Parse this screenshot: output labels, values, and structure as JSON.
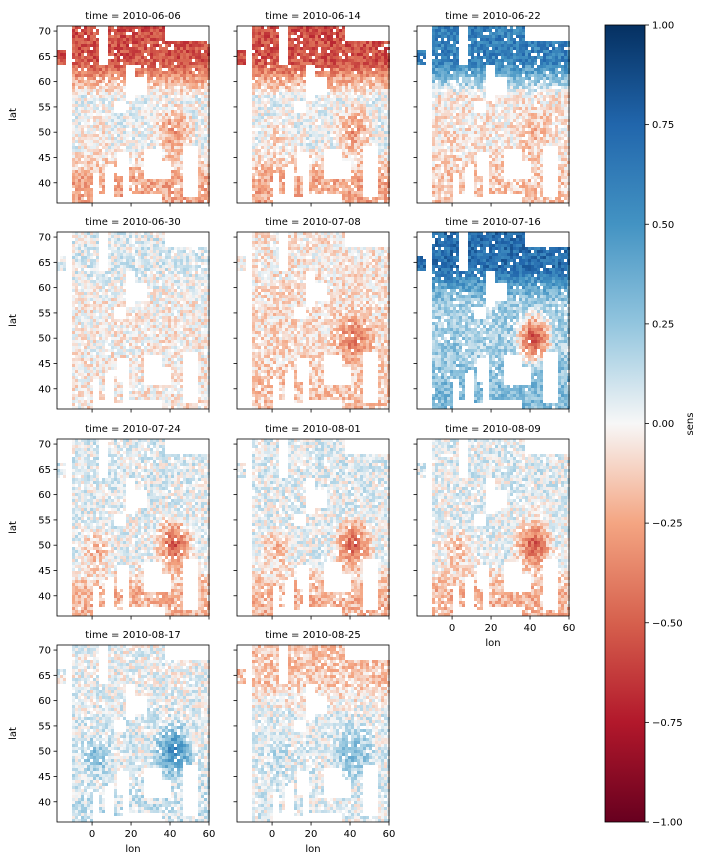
{
  "chart_data": {
    "type": "heatmap",
    "variable_label": "sens",
    "x_label": "lon",
    "y_label": "lat",
    "x_range": [
      -18,
      60
    ],
    "y_range": [
      36,
      71
    ],
    "x_ticks": [
      0,
      20,
      40,
      60
    ],
    "y_ticks": [
      40,
      45,
      50,
      55,
      60,
      65,
      70
    ],
    "colormap": "RdBu",
    "color_range": [
      -1.0,
      1.0
    ],
    "colorbar_ticks": [
      "1.00",
      "0.75",
      "0.50",
      "0.25",
      "0.00",
      "−0.25",
      "−0.50",
      "−0.75",
      "−1.00"
    ],
    "panels": [
      {
        "title": "time = 2010-06-06",
        "north": -0.55,
        "south": -0.25,
        "central": 0.02,
        "east_hotspot": -0.35,
        "west_coast": -0.15
      },
      {
        "title": "time = 2010-06-14",
        "north": -0.55,
        "south": -0.25,
        "central": 0.02,
        "east_hotspot": -0.35,
        "west_coast": -0.15
      },
      {
        "title": "time = 2010-06-22",
        "north": 0.6,
        "south": -0.15,
        "central": -0.05,
        "east_hotspot": -0.2,
        "west_coast": -0.1
      },
      {
        "title": "time = 2010-06-30",
        "north": 0.05,
        "south": -0.05,
        "central": -0.03,
        "east_hotspot": -0.05,
        "west_coast": -0.02
      },
      {
        "title": "time = 2010-07-08",
        "north": -0.05,
        "south": -0.15,
        "central": -0.08,
        "east_hotspot": -0.45,
        "west_coast": -0.1
      },
      {
        "title": "time = 2010-07-16",
        "north": 0.7,
        "south": 0.3,
        "central": 0.2,
        "east_hotspot": -0.65,
        "west_coast": 0.25
      },
      {
        "title": "time = 2010-07-24",
        "north": 0.05,
        "south": -0.2,
        "central": 0.03,
        "east_hotspot": -0.55,
        "west_coast": -0.3
      },
      {
        "title": "time = 2010-08-01",
        "north": 0.05,
        "south": -0.2,
        "central": 0.03,
        "east_hotspot": -0.55,
        "west_coast": -0.3
      },
      {
        "title": "time = 2010-08-09",
        "north": 0.05,
        "south": -0.2,
        "central": 0.03,
        "east_hotspot": -0.55,
        "west_coast": -0.3
      },
      {
        "title": "time = 2010-08-17",
        "north": 0.02,
        "south": 0.1,
        "central": 0.05,
        "east_hotspot": 0.6,
        "west_coast": 0.4
      },
      {
        "title": "time = 2010-08-25",
        "north": -0.15,
        "south": 0.05,
        "central": 0.05,
        "east_hotspot": 0.35,
        "west_coast": 0.15
      }
    ]
  }
}
